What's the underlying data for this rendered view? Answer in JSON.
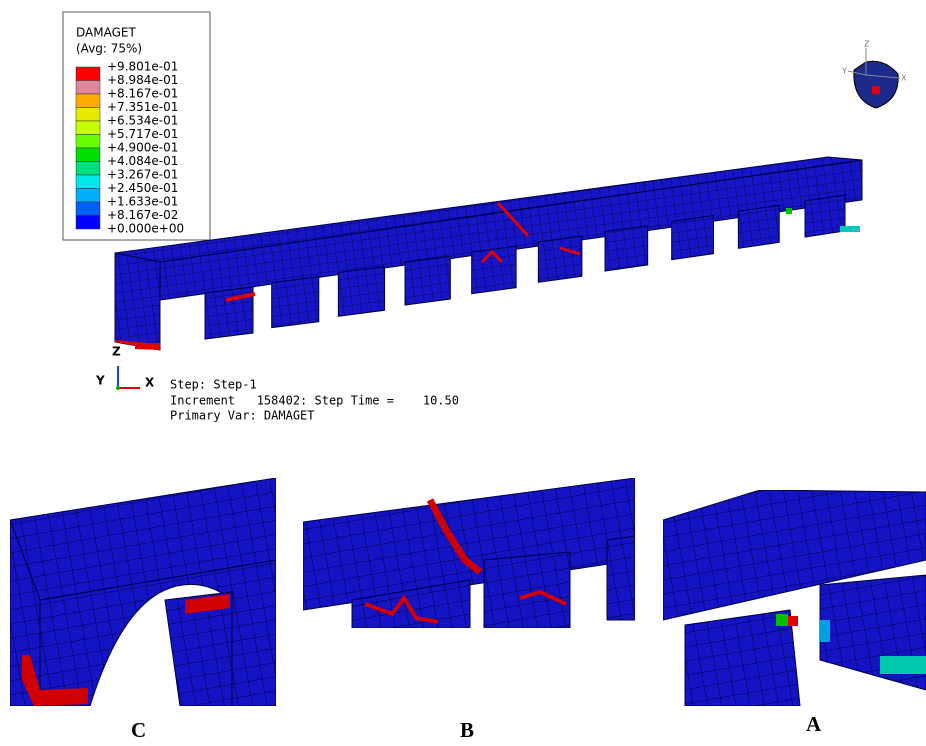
{
  "legend": {
    "title": "DAMAGET",
    "subtitle": "(Avg: 75%)",
    "labels": [
      "+9.801e-01",
      "+8.984e-01",
      "+8.167e-01",
      "+7.351e-01",
      "+6.534e-01",
      "+5.717e-01",
      "+4.900e-01",
      "+4.084e-01",
      "+3.267e-01",
      "+2.450e-01",
      "+1.633e-01",
      "+8.167e-02",
      "+0.000e+00"
    ],
    "colors": [
      "#ff0000",
      "#e0889a",
      "#ffaa00",
      "#e8e800",
      "#c8ff00",
      "#66ff00",
      "#00e000",
      "#00e080",
      "#00e8e8",
      "#00b0ff",
      "#0060ff",
      "#0000ff"
    ]
  },
  "view_triad": {
    "z": "Z",
    "y": "Y",
    "x": "X"
  },
  "axis_triad": {
    "z": "Z",
    "y": "Y",
    "x": "X"
  },
  "info": {
    "step": "Step: Step-1",
    "increment": "Increment   158402: Step Time =    10.50",
    "primary_var": "Primary Var: DAMAGET"
  },
  "panels": {
    "c": "C",
    "b": "B",
    "a": "A"
  }
}
